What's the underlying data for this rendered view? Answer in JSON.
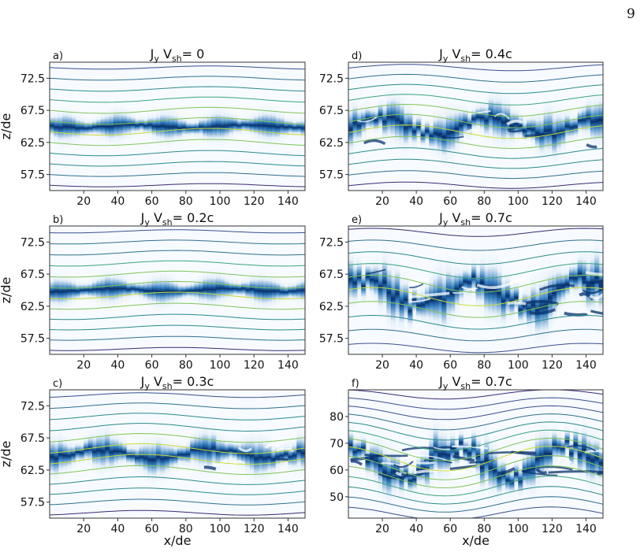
{
  "page_number": "9",
  "colors": {
    "field_line_palette": [
      "#3b2a73",
      "#3a4f8f",
      "#2f6f8e",
      "#2a8a8b",
      "#3aa37d",
      "#7fc45a",
      "#c5dc3a"
    ],
    "density_dark": "#08306b",
    "density_mid": "#2171b5",
    "background": "#f7fbff"
  },
  "chart_data": [
    {
      "type": "heatmap",
      "panel_label": "a)",
      "title": "J_y V_sh= 0",
      "title_parts": {
        "main": "J",
        "sub1": "y",
        "mid": " V",
        "sub2": "sh",
        "tail": "= 0"
      },
      "xlabel": "",
      "ylabel": "z/de",
      "xlim": [
        0,
        150
      ],
      "ylim": [
        55,
        75
      ],
      "xticks": [
        "20",
        "40",
        "60",
        "80",
        "100",
        "120",
        "140"
      ],
      "yticks": [
        "72.5",
        "67.5",
        "62.5",
        "57.5"
      ],
      "sheet_center": 65,
      "sheet_halfwidth": 1.8,
      "turbulence": "low",
      "field_line_count": 12
    },
    {
      "type": "heatmap",
      "panel_label": "b)",
      "title": "J_y V_sh= 0.2c",
      "title_parts": {
        "main": "J",
        "sub1": "y",
        "mid": " V",
        "sub2": "sh",
        "tail": "= 0.2c"
      },
      "xlabel": "",
      "ylabel": "z/de",
      "xlim": [
        0,
        150
      ],
      "ylim": [
        55,
        75
      ],
      "xticks": [
        "20",
        "40",
        "60",
        "80",
        "100",
        "120",
        "140"
      ],
      "yticks": [
        "72.5",
        "67.5",
        "62.5",
        "57.5"
      ],
      "sheet_center": 65,
      "sheet_halfwidth": 1.8,
      "turbulence": "low",
      "field_line_count": 12
    },
    {
      "type": "heatmap",
      "panel_label": "c)",
      "title": "J_y V_sh= 0.3c",
      "title_parts": {
        "main": "J",
        "sub1": "y",
        "mid": " V",
        "sub2": "sh",
        "tail": "= 0.3c"
      },
      "xlabel": "x/de",
      "ylabel": "z/de",
      "xlim": [
        0,
        150
      ],
      "ylim": [
        55,
        75
      ],
      "xticks": [
        "20",
        "40",
        "60",
        "80",
        "100",
        "120",
        "140"
      ],
      "yticks": [
        "72.5",
        "67.5",
        "62.5",
        "57.5"
      ],
      "sheet_center": 65,
      "sheet_halfwidth": 2.2,
      "turbulence": "medium",
      "field_line_count": 12
    },
    {
      "type": "heatmap",
      "panel_label": "d)",
      "title": "J_y V_sh= 0.4c",
      "title_parts": {
        "main": "J",
        "sub1": "y",
        "mid": " V",
        "sub2": "sh",
        "tail": "= 0.4c"
      },
      "xlabel": "",
      "ylabel": "",
      "xlim": [
        0,
        150
      ],
      "ylim": [
        55,
        75
      ],
      "xticks": [
        "20",
        "40",
        "60",
        "80",
        "100",
        "120",
        "140"
      ],
      "yticks": [
        "72.5",
        "67.5",
        "62.5",
        "57.5"
      ],
      "sheet_center": 65,
      "sheet_halfwidth": 2.4,
      "turbulence": "high",
      "field_line_count": 12
    },
    {
      "type": "heatmap",
      "panel_label": "e)",
      "title": "J_y V_sh= 0.7c",
      "title_parts": {
        "main": "J",
        "sub1": "y",
        "mid": " V",
        "sub2": "sh",
        "tail": "= 0.7c"
      },
      "xlabel": "",
      "ylabel": "",
      "xlim": [
        0,
        150
      ],
      "ylim": [
        55,
        75
      ],
      "xticks": [
        "20",
        "40",
        "60",
        "80",
        "100",
        "120",
        "140"
      ],
      "yticks": [
        "72.5",
        "67.5",
        "62.5",
        "57.5"
      ],
      "sheet_center": 64.5,
      "sheet_halfwidth": 2.8,
      "turbulence": "very-high",
      "field_line_count": 10
    },
    {
      "type": "heatmap",
      "panel_label": "f)",
      "title": "J_y V_sh= 0.7c",
      "title_parts": {
        "main": "J",
        "sub1": "y",
        "mid": " V",
        "sub2": "sh",
        "tail": "= 0.7c"
      },
      "xlabel": "x/de",
      "ylabel": "",
      "xlim": [
        0,
        150
      ],
      "ylim": [
        42,
        90
      ],
      "xticks": [
        "20",
        "40",
        "60",
        "80",
        "100",
        "120",
        "140"
      ],
      "yticks": [
        "80",
        "70",
        "60",
        "50"
      ],
      "sheet_center": 63,
      "sheet_halfwidth": 5,
      "turbulence": "extreme",
      "field_line_count": 14
    }
  ]
}
